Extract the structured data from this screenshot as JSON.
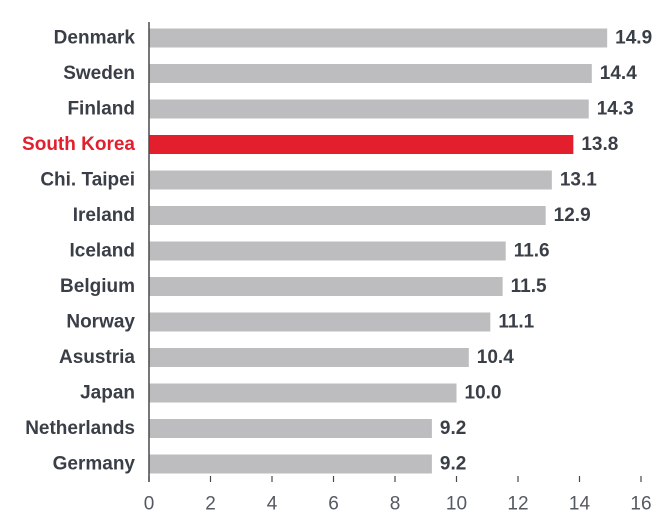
{
  "chart_data": {
    "type": "bar",
    "orientation": "horizontal",
    "title": "",
    "xlabel": "",
    "ylabel": "",
    "categories": [
      "Denmark",
      "Sweden",
      "Finland",
      "South Korea",
      "Chi. Taipei",
      "Ireland",
      "Iceland",
      "Belgium",
      "Norway",
      "Asustria",
      "Japan",
      "Netherlands",
      "Germany"
    ],
    "values": [
      14.9,
      14.4,
      14.3,
      13.8,
      13.1,
      12.9,
      11.6,
      11.5,
      11.1,
      10.4,
      10.0,
      9.2,
      9.2
    ],
    "value_labels": [
      "14.9",
      "14.4",
      "14.3",
      "13.8",
      "13.1",
      "12.9",
      "11.6",
      "11.5",
      "11.1",
      "10.4",
      "10.0",
      "9.2",
      "9.2"
    ],
    "highlight": "South Korea",
    "xlim": [
      0,
      16
    ],
    "xticks": [
      0,
      2,
      4,
      6,
      8,
      10,
      12,
      14,
      16
    ],
    "grid": false,
    "legend": "none",
    "colors": {
      "bar": "#bdbdbf",
      "highlight": "#e31e2d",
      "axis": "#4a4a4a",
      "text": "#3a3f47",
      "highlight_text": "#e31e2d"
    }
  }
}
